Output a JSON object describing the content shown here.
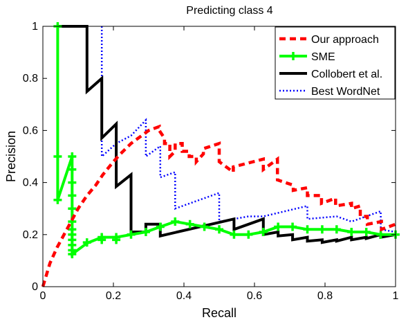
{
  "chart_data": {
    "type": "line",
    "title": "Predicting class 4",
    "xlabel": "Recall",
    "ylabel": "Precision",
    "xlim": [
      0,
      1
    ],
    "ylim": [
      0,
      1
    ],
    "x_ticks": [
      "0",
      "0.2",
      "0.4",
      "0.6",
      "0.8",
      "1"
    ],
    "y_ticks": [
      "0",
      "0.2",
      "0.4",
      "0.6",
      "0.8",
      "1"
    ],
    "grid": false,
    "legend_position": "top-right",
    "series": [
      {
        "name": "Our approach",
        "color": "#ff0000",
        "style": "dashed",
        "points": [
          [
            0,
            0
          ],
          [
            0.02,
            0.09
          ],
          [
            0.04,
            0.15
          ],
          [
            0.06,
            0.2
          ],
          [
            0.08,
            0.25
          ],
          [
            0.1,
            0.3
          ],
          [
            0.125,
            0.35
          ],
          [
            0.15,
            0.39
          ],
          [
            0.17,
            0.43
          ],
          [
            0.2,
            0.48
          ],
          [
            0.22,
            0.51
          ],
          [
            0.25,
            0.55
          ],
          [
            0.28,
            0.58
          ],
          [
            0.3,
            0.6
          ],
          [
            0.33,
            0.615
          ],
          [
            0.33,
            0.6
          ],
          [
            0.345,
            0.57
          ],
          [
            0.345,
            0.55
          ],
          [
            0.36,
            0.55
          ],
          [
            0.36,
            0.5
          ],
          [
            0.375,
            0.52
          ],
          [
            0.375,
            0.55
          ],
          [
            0.395,
            0.55
          ],
          [
            0.395,
            0.52
          ],
          [
            0.415,
            0.52
          ],
          [
            0.415,
            0.5
          ],
          [
            0.435,
            0.5
          ],
          [
            0.435,
            0.48
          ],
          [
            0.455,
            0.51
          ],
          [
            0.455,
            0.53
          ],
          [
            0.5,
            0.55
          ],
          [
            0.5,
            0.48
          ],
          [
            0.54,
            0.44
          ],
          [
            0.54,
            0.46
          ],
          [
            0.625,
            0.49
          ],
          [
            0.625,
            0.45
          ],
          [
            0.665,
            0.49
          ],
          [
            0.665,
            0.41
          ],
          [
            0.71,
            0.39
          ],
          [
            0.71,
            0.37
          ],
          [
            0.75,
            0.38
          ],
          [
            0.75,
            0.35
          ],
          [
            0.79,
            0.35
          ],
          [
            0.79,
            0.32
          ],
          [
            0.83,
            0.34
          ],
          [
            0.83,
            0.31
          ],
          [
            0.875,
            0.32
          ],
          [
            0.875,
            0.3
          ],
          [
            0.9,
            0.31
          ],
          [
            0.9,
            0.27
          ],
          [
            0.92,
            0.27
          ],
          [
            0.92,
            0.24
          ],
          [
            0.96,
            0.25
          ],
          [
            0.96,
            0.22
          ],
          [
            1,
            0.24
          ]
        ]
      },
      {
        "name": "SME",
        "color": "#00ff00",
        "style": "solid",
        "markers": "plus",
        "points": [
          [
            0.042,
            1
          ],
          [
            0.042,
            0.333
          ],
          [
            0.083,
            0.5
          ],
          [
            0.083,
            0.125
          ],
          [
            0.125,
            0.167
          ],
          [
            0.167,
            0.19
          ],
          [
            0.208,
            0.19
          ],
          [
            0.25,
            0.2
          ],
          [
            0.292,
            0.21
          ],
          [
            0.333,
            0.23
          ],
          [
            0.375,
            0.25
          ],
          [
            0.417,
            0.24
          ],
          [
            0.458,
            0.23
          ],
          [
            0.5,
            0.22
          ],
          [
            0.542,
            0.2
          ],
          [
            0.583,
            0.2
          ],
          [
            0.625,
            0.21
          ],
          [
            0.667,
            0.23
          ],
          [
            0.708,
            0.23
          ],
          [
            0.75,
            0.22
          ],
          [
            0.792,
            0.22
          ],
          [
            0.833,
            0.22
          ],
          [
            0.875,
            0.21
          ],
          [
            0.917,
            0.21
          ],
          [
            0.958,
            0.2
          ],
          [
            1,
            0.2
          ]
        ],
        "marker_points": [
          [
            0.042,
            1
          ],
          [
            0.042,
            0.5
          ],
          [
            0.042,
            0.333
          ],
          [
            0.083,
            0.5
          ],
          [
            0.083,
            0.45
          ],
          [
            0.083,
            0.4
          ],
          [
            0.083,
            0.35
          ],
          [
            0.083,
            0.3
          ],
          [
            0.083,
            0.25
          ],
          [
            0.083,
            0.22
          ],
          [
            0.083,
            0.2
          ],
          [
            0.083,
            0.18
          ],
          [
            0.083,
            0.16
          ],
          [
            0.083,
            0.14
          ],
          [
            0.083,
            0.125
          ],
          [
            0.125,
            0.17
          ],
          [
            0.167,
            0.19
          ],
          [
            0.167,
            0.18
          ],
          [
            0.208,
            0.19
          ],
          [
            0.208,
            0.18
          ],
          [
            0.25,
            0.2
          ],
          [
            0.292,
            0.21
          ],
          [
            0.333,
            0.23
          ],
          [
            0.375,
            0.25
          ],
          [
            0.417,
            0.24
          ],
          [
            0.458,
            0.23
          ],
          [
            0.5,
            0.22
          ],
          [
            0.542,
            0.2
          ],
          [
            0.583,
            0.2
          ],
          [
            0.625,
            0.21
          ],
          [
            0.667,
            0.23
          ],
          [
            0.708,
            0.23
          ],
          [
            0.75,
            0.22
          ],
          [
            0.792,
            0.22
          ],
          [
            0.833,
            0.22
          ],
          [
            0.875,
            0.21
          ],
          [
            0.917,
            0.21
          ],
          [
            0.958,
            0.2
          ],
          [
            1,
            0.2
          ]
        ]
      },
      {
        "name": "Collobert et al.",
        "color": "#000000",
        "style": "solid",
        "points": [
          [
            0.042,
            1
          ],
          [
            0.125,
            1
          ],
          [
            0.125,
            0.75
          ],
          [
            0.167,
            0.8
          ],
          [
            0.167,
            0.571
          ],
          [
            0.208,
            0.625
          ],
          [
            0.208,
            0.385
          ],
          [
            0.25,
            0.43
          ],
          [
            0.25,
            0.21
          ],
          [
            0.292,
            0.21
          ],
          [
            0.292,
            0.24
          ],
          [
            0.333,
            0.24
          ],
          [
            0.333,
            0.195
          ],
          [
            0.542,
            0.26
          ],
          [
            0.542,
            0.22
          ],
          [
            0.625,
            0.26
          ],
          [
            0.625,
            0.2
          ],
          [
            0.667,
            0.21
          ],
          [
            0.667,
            0.195
          ],
          [
            0.708,
            0.2
          ],
          [
            0.708,
            0.18
          ],
          [
            0.75,
            0.19
          ],
          [
            0.75,
            0.175
          ],
          [
            0.792,
            0.18
          ],
          [
            0.792,
            0.17
          ],
          [
            0.833,
            0.18
          ],
          [
            0.833,
            0.175
          ],
          [
            0.875,
            0.19
          ],
          [
            0.875,
            0.18
          ],
          [
            0.917,
            0.19
          ],
          [
            0.917,
            0.185
          ],
          [
            0.958,
            0.2
          ],
          [
            0.958,
            0.19
          ],
          [
            1,
            0.2
          ]
        ]
      },
      {
        "name": "Best WordNet",
        "color": "#0000ff",
        "style": "dotted",
        "points": [
          [
            0.167,
            1
          ],
          [
            0.167,
            0.5
          ],
          [
            0.208,
            0.55
          ],
          [
            0.25,
            0.58
          ],
          [
            0.292,
            0.64
          ],
          [
            0.292,
            0.5
          ],
          [
            0.333,
            0.54
          ],
          [
            0.333,
            0.42
          ],
          [
            0.375,
            0.44
          ],
          [
            0.375,
            0.3
          ],
          [
            0.5,
            0.36
          ],
          [
            0.5,
            0.25
          ],
          [
            0.583,
            0.27
          ],
          [
            0.625,
            0.27
          ],
          [
            0.75,
            0.31
          ],
          [
            0.75,
            0.26
          ],
          [
            0.833,
            0.27
          ],
          [
            0.875,
            0.25
          ],
          [
            0.958,
            0.29
          ],
          [
            0.958,
            0.22
          ],
          [
            1,
            0.21
          ]
        ]
      }
    ]
  }
}
